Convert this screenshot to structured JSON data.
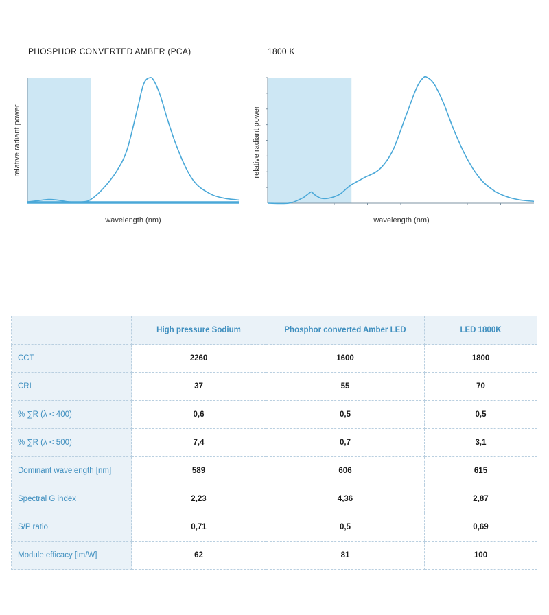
{
  "colors": {
    "curve": "#4aa8d8",
    "shade": "#cde7f4",
    "axis": "#7d93a3",
    "header_bg": "#eaf2f8",
    "header_text": "#3f8fbf"
  },
  "chart_data": [
    {
      "type": "line",
      "title": "PHOSPHOR CONVERTED AMBER (PCA)",
      "xlabel": "wavelength (nm)",
      "ylabel": "relative radiant power",
      "grid": false,
      "shaded_region": {
        "x": [
          0,
          0.3
        ]
      },
      "series": [
        {
          "x": [
            0,
            0.05,
            0.1,
            0.14,
            0.2,
            0.26,
            0.3,
            0.36,
            0.42,
            0.47,
            0.52,
            0.55,
            0.58,
            0.6,
            0.63,
            0.66,
            0.7,
            0.75,
            0.8,
            0.87,
            0.93,
            1
          ],
          "values": [
            0.01,
            0.02,
            0.03,
            0.025,
            0.01,
            0.01,
            0.03,
            0.12,
            0.25,
            0.42,
            0.75,
            0.95,
            1.0,
            0.97,
            0.85,
            0.68,
            0.48,
            0.28,
            0.15,
            0.07,
            0.04,
            0.025
          ]
        }
      ]
    },
    {
      "type": "line",
      "title": "1800 K",
      "xlabel": "wavelength (nm)",
      "ylabel": "relative radiant power",
      "grid": false,
      "shaded_region": {
        "x": [
          0,
          0.315
        ]
      },
      "series": [
        {
          "x": [
            0,
            0.08,
            0.13,
            0.15,
            0.165,
            0.175,
            0.2,
            0.23,
            0.27,
            0.31,
            0.36,
            0.42,
            0.47,
            0.52,
            0.56,
            0.585,
            0.6,
            0.625,
            0.66,
            0.7,
            0.75,
            0.8,
            0.85,
            0.9,
            0.95,
            1
          ],
          "values": [
            0,
            0.0,
            0.04,
            0.07,
            0.09,
            0.07,
            0.04,
            0.04,
            0.07,
            0.14,
            0.2,
            0.27,
            0.42,
            0.7,
            0.92,
            1.0,
            1.0,
            0.95,
            0.8,
            0.58,
            0.35,
            0.19,
            0.1,
            0.05,
            0.025,
            0.015
          ]
        }
      ]
    }
  ],
  "table": {
    "corner": "",
    "columns": [
      "High pressure Sodium",
      "Phosphor converted Amber LED",
      "LED 1800K"
    ],
    "rows": [
      {
        "label": "CCT",
        "values": [
          "2260",
          "1600",
          "1800"
        ]
      },
      {
        "label": "CRI",
        "values": [
          "37",
          "55",
          "70"
        ]
      },
      {
        "label": "% ∑R (λ < 400)",
        "values": [
          "0,6",
          "0,5",
          "0,5"
        ]
      },
      {
        "label": "% ∑R (λ < 500)",
        "values": [
          "7,4",
          "0,7",
          "3,1"
        ]
      },
      {
        "label": "Dominant wavelength [nm]",
        "values": [
          "589",
          "606",
          "615"
        ]
      },
      {
        "label": "Spectral G index",
        "values": [
          "2,23",
          "4,36",
          "2,87"
        ]
      },
      {
        "label": "S/P ratio",
        "values": [
          "0,71",
          "0,5",
          "0,69"
        ]
      },
      {
        "label": "Module efficacy [lm/W]",
        "values": [
          "62",
          "81",
          "100"
        ]
      }
    ]
  }
}
